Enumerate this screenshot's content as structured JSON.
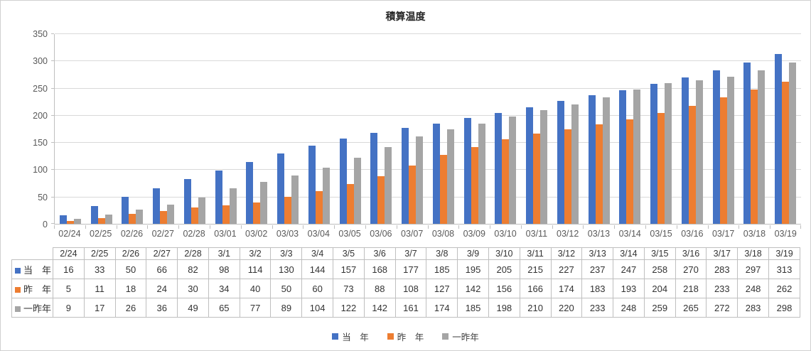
{
  "chart_data": {
    "type": "bar",
    "title": "積算温度",
    "x": [
      "02/24",
      "02/25",
      "02/26",
      "02/27",
      "02/28",
      "03/01",
      "03/02",
      "03/03",
      "03/04",
      "03/05",
      "03/06",
      "03/07",
      "03/08",
      "03/09",
      "03/10",
      "03/11",
      "03/12",
      "03/13",
      "03/14",
      "03/15",
      "03/16",
      "03/17",
      "03/18",
      "03/19"
    ],
    "series": [
      {
        "name": "当　年",
        "color": "#4472C4",
        "values": [
          16,
          33,
          50,
          66,
          82,
          98,
          114,
          130,
          144,
          157,
          168,
          177,
          185,
          195,
          205,
          215,
          227,
          237,
          247,
          258,
          270,
          283,
          297,
          313
        ]
      },
      {
        "name": "昨　年",
        "color": "#ED7D31",
        "values": [
          5,
          11,
          18,
          24,
          30,
          34,
          40,
          50,
          60,
          73,
          88,
          108,
          127,
          142,
          156,
          166,
          174,
          183,
          193,
          204,
          218,
          233,
          248,
          262
        ]
      },
      {
        "name": "一昨年",
        "color": "#A5A5A5",
        "values": [
          9,
          17,
          26,
          36,
          49,
          65,
          77,
          89,
          104,
          122,
          142,
          161,
          174,
          185,
          198,
          210,
          220,
          233,
          248,
          259,
          265,
          272,
          283,
          298
        ]
      }
    ],
    "ylim": [
      0,
      350
    ],
    "yticks": [
      0,
      50,
      100,
      150,
      200,
      250,
      300,
      350
    ],
    "grid": true,
    "legend_position": "bottom",
    "data_table_columns": [
      "2/24",
      "2/25",
      "2/26",
      "2/27",
      "2/28",
      "3/1",
      "3/2",
      "3/3",
      "3/4",
      "3/5",
      "3/6",
      "3/7",
      "3/8",
      "3/9",
      "3/10",
      "3/11",
      "3/12",
      "3/13",
      "3/14",
      "3/15",
      "3/16",
      "3/17",
      "3/18",
      "3/19"
    ]
  },
  "colors": {
    "gridline": "#D9D9D9",
    "axis": "#BFBFBF",
    "axis_text": "#595959",
    "table_border": "#BFBFBF"
  }
}
